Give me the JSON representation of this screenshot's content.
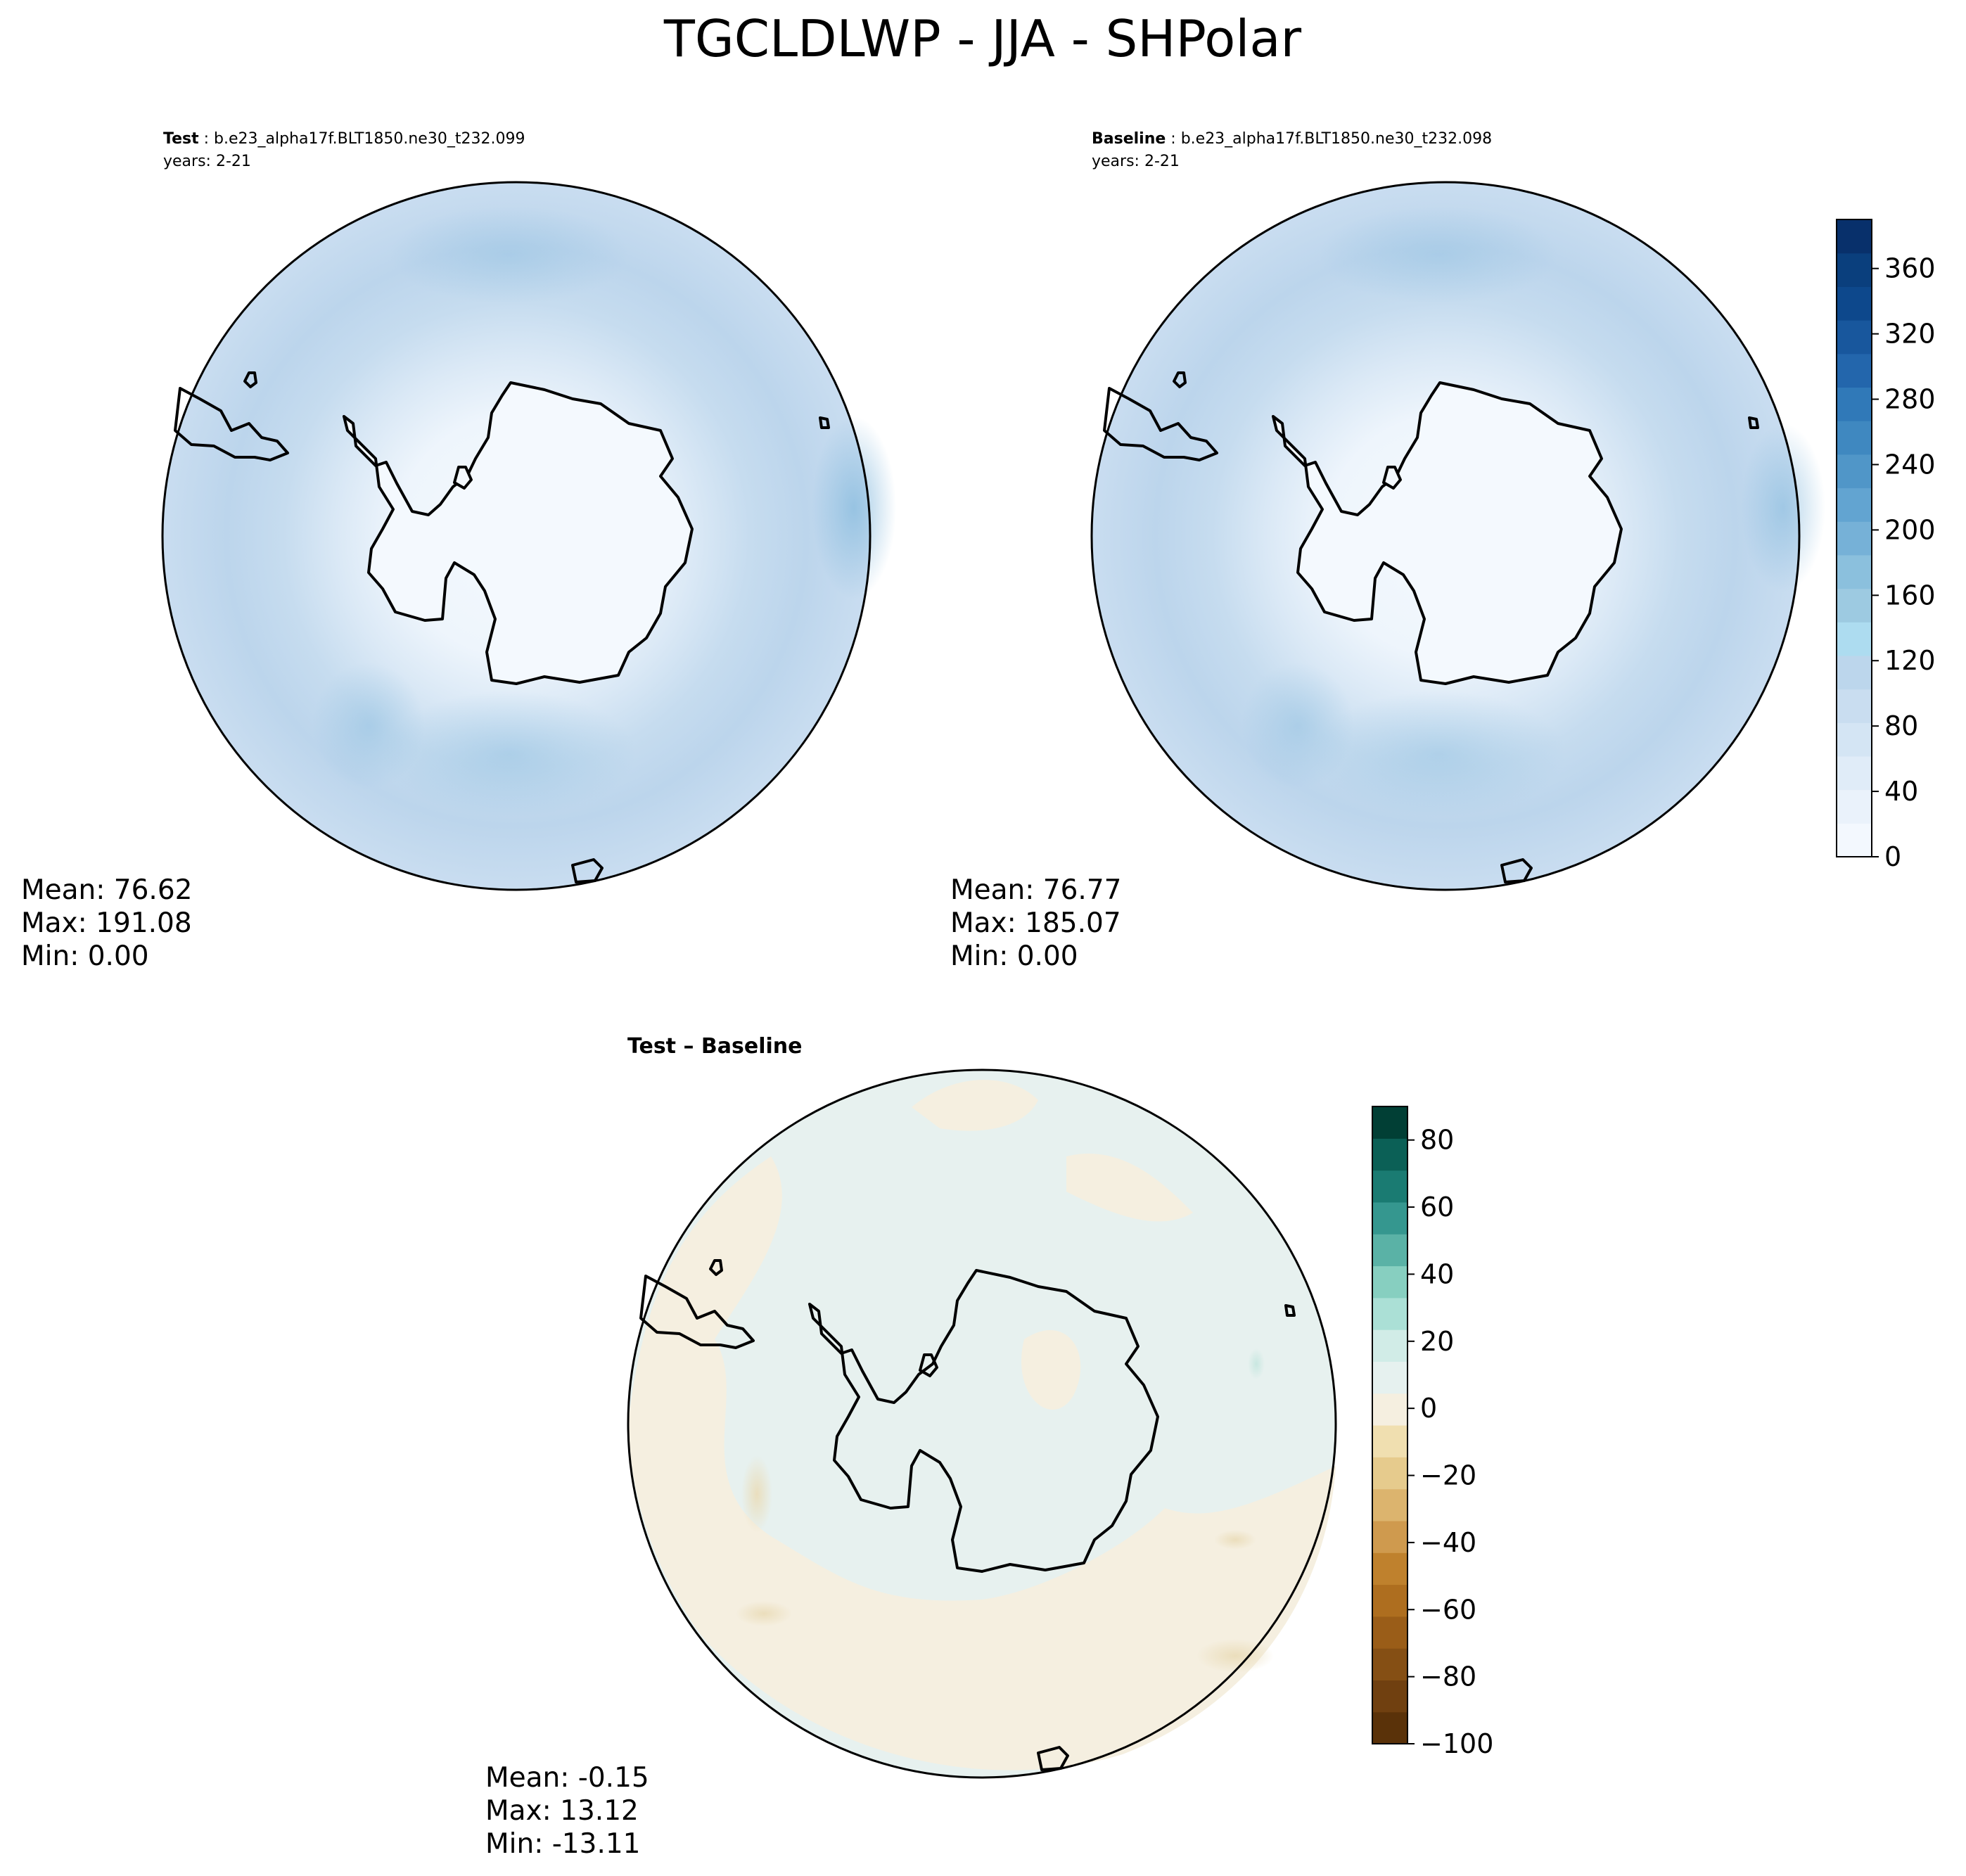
{
  "figure": {
    "title": "TGCLDLWP - JJA - SHPolar"
  },
  "panels": [
    {
      "id": "test",
      "title_bold": "Test",
      "title_rest": " : b.e23_alpha17f.BLT1850.ne30_t232.099",
      "years": "years: 2-21",
      "stats": {
        "mean": "Mean: 76.62",
        "max": "Max: 191.08",
        "min": "Min:  0.00"
      }
    },
    {
      "id": "baseline",
      "title_bold": "Baseline",
      "title_rest": " : b.e23_alpha17f.BLT1850.ne30_t232.098",
      "years": "years: 2-21",
      "stats": {
        "mean": "Mean: 76.77",
        "max": "Max: 185.07",
        "min": "Min:  0.00"
      }
    },
    {
      "id": "diff",
      "title_bold": "Test – Baseline",
      "stats": {
        "mean": "Mean: -0.15",
        "max": "Max: 13.12",
        "min": "Min: -13.11"
      }
    }
  ],
  "colorbars": {
    "main": {
      "range": [
        0,
        390
      ],
      "ticks": [
        "0",
        "40",
        "80",
        "120",
        "160",
        "200",
        "240",
        "280",
        "320",
        "360"
      ],
      "colors": [
        "#f3f8fe",
        "#eaf2fb",
        "#e0ecf8",
        "#d4e5f4",
        "#c9ddf0",
        "#bcd6ec",
        "#addcf0",
        "#9dcae1",
        "#8bc0dd",
        "#76b1d7",
        "#62a4d1",
        "#5096c8",
        "#3f88c0",
        "#3079b8",
        "#2366ac",
        "#18579d",
        "#0d488c",
        "#0a3f7d",
        "#08306b"
      ]
    },
    "diff": {
      "range": [
        -100,
        90
      ],
      "ticks": [
        "−100",
        "−80",
        "−60",
        "−40",
        "−20",
        "0",
        "20",
        "40",
        "60",
        "80"
      ],
      "colors": [
        "#5a3209",
        "#704010",
        "#854f14",
        "#9a5d18",
        "#ae6e1f",
        "#bf812d",
        "#cf9a4e",
        "#dcb46e",
        "#e6cb8d",
        "#f0dfb0",
        "#f5efe0",
        "#e6f1ef",
        "#d1ece7",
        "#abe0d6",
        "#87cfc0",
        "#5ab2a6",
        "#35978f",
        "#1a7b72",
        "#0b6056",
        "#013f35"
      ]
    }
  },
  "map": {
    "continent": "Antarctica",
    "projection": "South polar stereographic",
    "field_colors": {
      "ice": "#f3f8fe",
      "ring": "#e1edf8",
      "ocean": "#c6dcef",
      "storm": "#a9cde6",
      "diff_pos": "#e6f1ef",
      "diff_neg": "#f5efe0"
    }
  }
}
